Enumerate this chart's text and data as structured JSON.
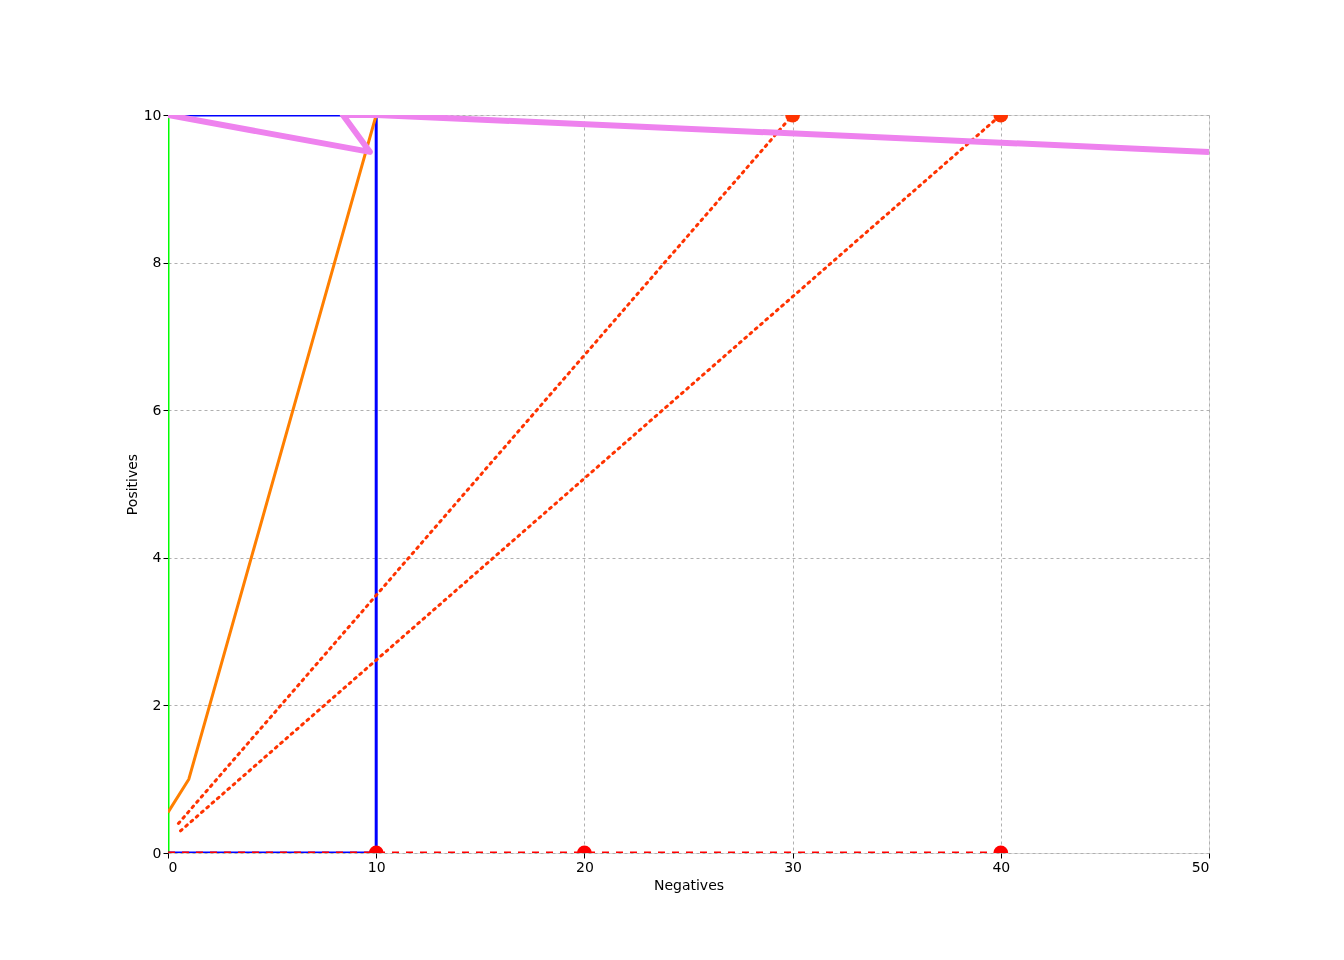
{
  "chart_data": {
    "type": "line",
    "xlabel": "Negatives",
    "ylabel": "Positives",
    "xlim": [
      0,
      50
    ],
    "ylim": [
      0,
      10
    ],
    "xticks": [
      0,
      10,
      20,
      30,
      40,
      50
    ],
    "yticks": [
      0,
      2,
      4,
      6,
      8,
      10
    ],
    "grid": true,
    "series": [
      {
        "color": "#00ff00",
        "line_style": "solid",
        "x": [
          0,
          0
        ],
        "values": [
          0,
          10
        ]
      },
      {
        "color": "#0000ff",
        "line_style": "solid",
        "x": [
          0,
          10,
          10,
          0
        ],
        "values": [
          10,
          10,
          0,
          0
        ]
      },
      {
        "color": "#ff7f00",
        "line_style": "solid",
        "x": [
          0,
          1,
          10
        ],
        "values": [
          0.55,
          1,
          10
        ]
      },
      {
        "color": "#ff3300",
        "line_style": "dotted",
        "x": [
          0.5,
          30
        ],
        "values": [
          0.4,
          10
        ]
      },
      {
        "color": "#ff3300",
        "line_style": "dotted",
        "x": [
          0.6,
          40
        ],
        "values": [
          0.3,
          10
        ]
      },
      {
        "color": "#ff0000",
        "line_style": "dashed",
        "x": [
          0,
          40
        ],
        "values": [
          0,
          0
        ]
      },
      {
        "color": "#ee82ee",
        "line_style": "solid",
        "x": [
          0,
          9.7,
          8.4,
          10,
          50
        ],
        "values": [
          10,
          9.5,
          10,
          10,
          9.5
        ]
      },
      {
        "type": "scatter",
        "marker": "circle",
        "color": "#ff3300",
        "x": [
          30,
          40
        ],
        "values": [
          10,
          10
        ]
      },
      {
        "type": "scatter",
        "marker": "circle",
        "color": "#ff0000",
        "x": [
          10,
          20,
          40
        ],
        "values": [
          0,
          0,
          0
        ]
      }
    ]
  }
}
